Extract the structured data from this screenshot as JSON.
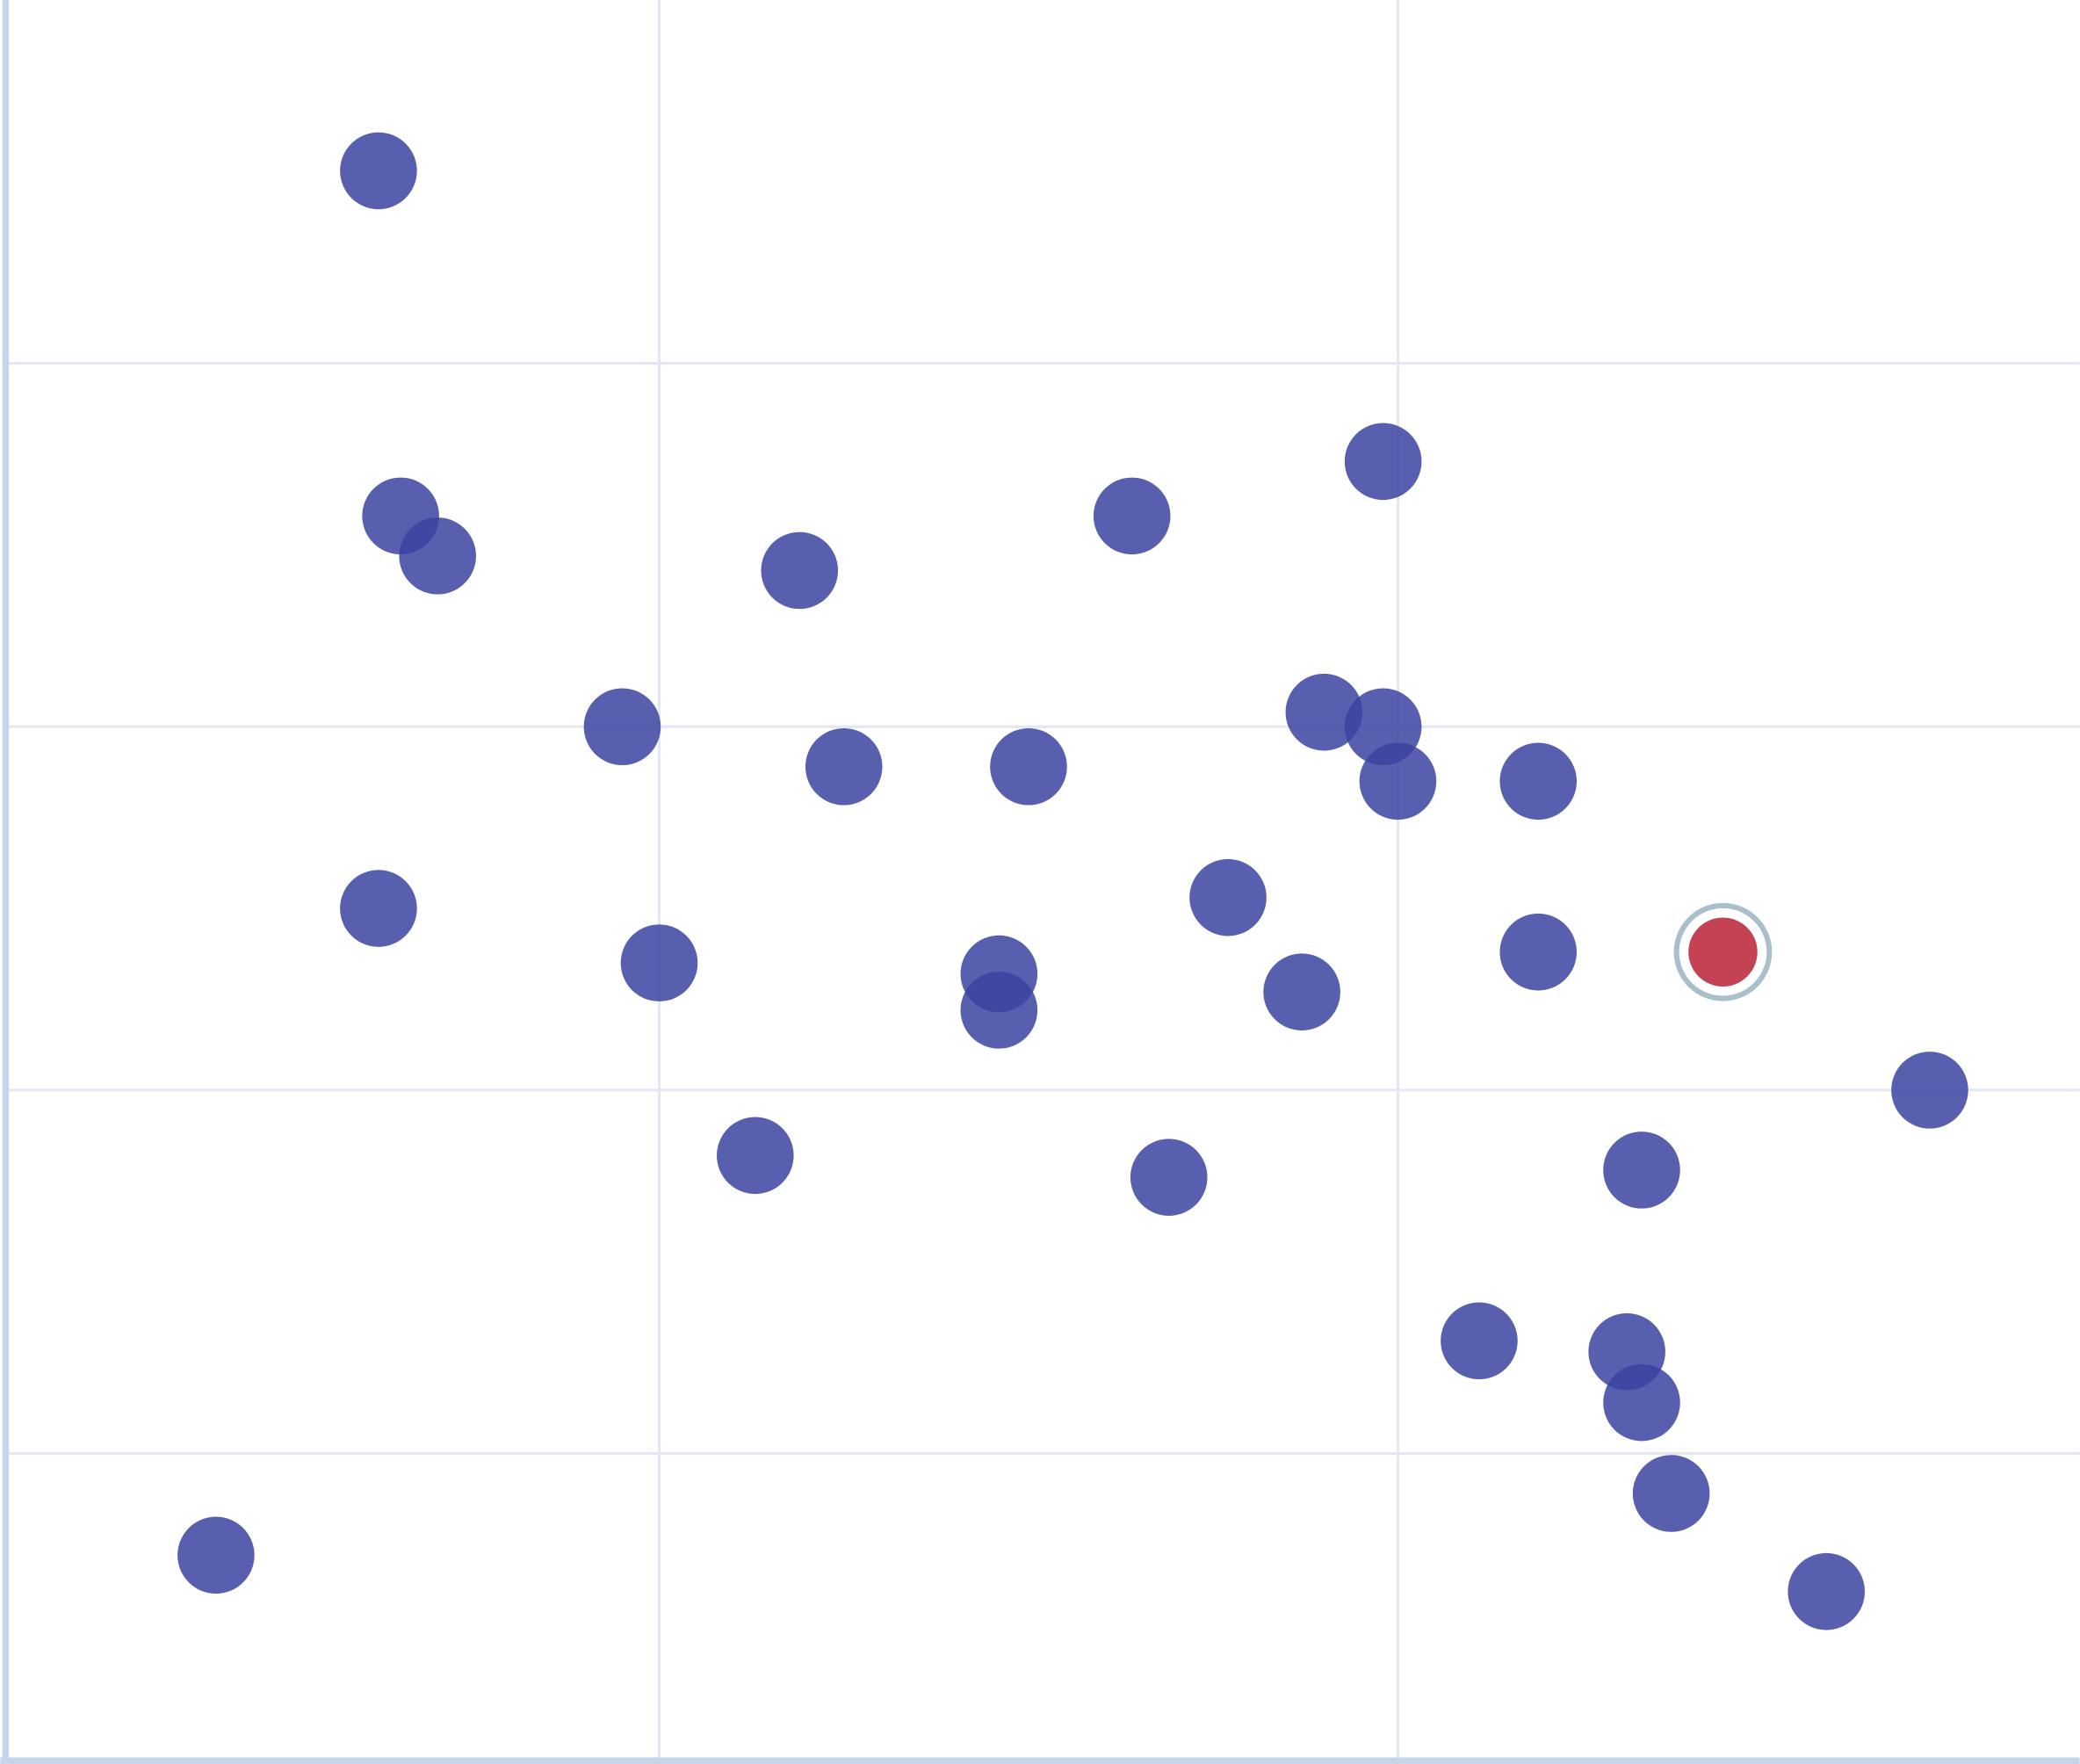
{
  "chart_data": {
    "type": "scatter",
    "title": "",
    "xlabel": "",
    "ylabel": "",
    "xlim": [
      0.117,
      2.923
    ],
    "ylim": [
      0.16,
      5.0
    ],
    "x_gridlines": [
      1,
      2
    ],
    "y_gridlines": [
      1,
      2,
      3,
      4
    ],
    "grid": true,
    "colors": {
      "point": "#3b43a0",
      "highlight": "#c0394b",
      "highlight_ring": "#a9bfcc",
      "grid": "#e3e6f3",
      "axis": "#c8d4ea"
    },
    "points": [
      {
        "x": 0.62,
        "y": 4.53
      },
      {
        "x": 0.65,
        "y": 3.58
      },
      {
        "x": 0.7,
        "y": 3.47
      },
      {
        "x": 1.19,
        "y": 3.43
      },
      {
        "x": 1.64,
        "y": 3.58
      },
      {
        "x": 1.98,
        "y": 3.73
      },
      {
        "x": 0.95,
        "y": 3.0
      },
      {
        "x": 1.25,
        "y": 2.89
      },
      {
        "x": 1.5,
        "y": 2.89
      },
      {
        "x": 1.9,
        "y": 3.04
      },
      {
        "x": 1.98,
        "y": 3.0
      },
      {
        "x": 2.0,
        "y": 2.85
      },
      {
        "x": 2.19,
        "y": 2.85
      },
      {
        "x": 0.62,
        "y": 2.5
      },
      {
        "x": 1.0,
        "y": 2.35
      },
      {
        "x": 1.46,
        "y": 2.32
      },
      {
        "x": 1.46,
        "y": 2.22
      },
      {
        "x": 1.77,
        "y": 2.53
      },
      {
        "x": 1.87,
        "y": 2.27
      },
      {
        "x": 2.19,
        "y": 2.38
      },
      {
        "x": 2.72,
        "y": 2.0
      },
      {
        "x": 1.13,
        "y": 1.82
      },
      {
        "x": 1.69,
        "y": 1.76
      },
      {
        "x": 2.33,
        "y": 1.78
      },
      {
        "x": 2.11,
        "y": 1.31
      },
      {
        "x": 2.31,
        "y": 1.28
      },
      {
        "x": 2.33,
        "y": 1.14
      },
      {
        "x": 2.37,
        "y": 0.89
      },
      {
        "x": 0.4,
        "y": 0.72
      },
      {
        "x": 2.58,
        "y": 0.62
      }
    ],
    "highlighted_point": {
      "x": 2.44,
      "y": 2.38
    }
  }
}
